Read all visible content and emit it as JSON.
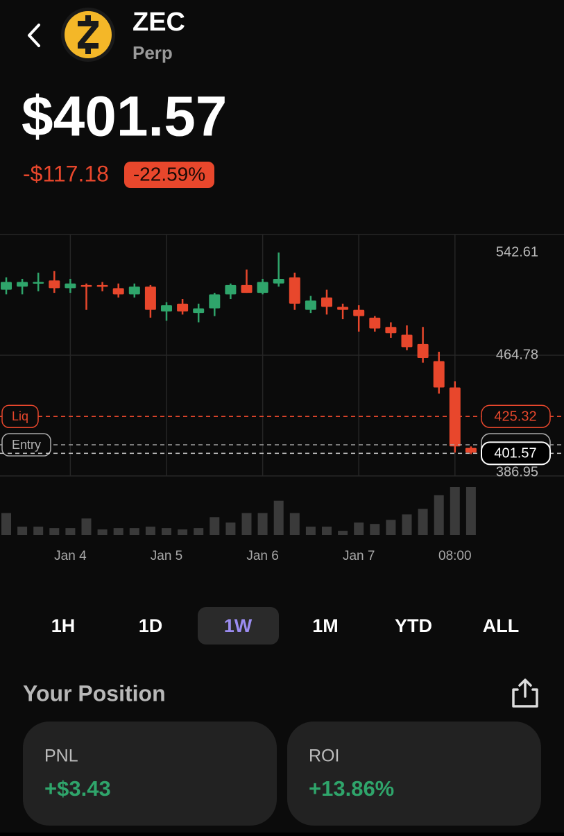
{
  "header": {
    "title": "ZEC",
    "subtitle": "Perp"
  },
  "price": "$401.57",
  "change": "-$117.18",
  "change_pct": "-22.59%",
  "chart_data": {
    "type": "candlestick",
    "categories": [
      null,
      null,
      null,
      null,
      "Jan 4",
      null,
      null,
      null,
      null,
      null,
      "Jan 5",
      null,
      null,
      null,
      null,
      null,
      "Jan 6",
      null,
      null,
      null,
      null,
      null,
      "Jan 7",
      null,
      null,
      null,
      null,
      null,
      "08:00",
      null
    ],
    "open": [
      507,
      509,
      511,
      513,
      508,
      510,
      510,
      508,
      504,
      509,
      493,
      498,
      492,
      495,
      504,
      510,
      505,
      511,
      515,
      494,
      502,
      496,
      494,
      489,
      483,
      478,
      472,
      461,
      444,
      405
    ],
    "high": [
      515,
      514,
      518,
      519,
      514,
      511,
      512,
      511,
      511,
      510,
      499,
      501,
      498,
      505,
      511,
      520,
      514,
      531,
      518,
      503,
      507,
      498,
      497,
      490,
      486,
      484,
      483,
      467,
      448,
      406
    ],
    "low": [
      504,
      504,
      506,
      505,
      505,
      494,
      506,
      502,
      502,
      489,
      487,
      491,
      486,
      490,
      501,
      505,
      504,
      509,
      494,
      492,
      491,
      488,
      480,
      480,
      476,
      468,
      460,
      440,
      402,
      401
    ],
    "close": [
      512,
      512,
      512,
      508,
      511,
      509,
      509,
      504,
      509,
      494,
      497,
      493,
      495,
      504,
      510,
      505,
      512,
      514,
      498,
      500,
      496,
      494,
      490,
      482,
      479,
      470,
      463,
      444,
      406,
      402
    ],
    "volume": [
      32,
      12,
      12,
      10,
      10,
      24,
      8,
      10,
      10,
      12,
      10,
      8,
      10,
      26,
      18,
      32,
      32,
      50,
      32,
      12,
      12,
      6,
      18,
      16,
      22,
      30,
      38,
      58,
      70,
      70
    ],
    "ylim": [
      386.95,
      542.61
    ],
    "yticks": [
      542.61,
      464.78,
      386.95
    ],
    "up_color": "#2fa56b",
    "down_color": "#e8472c",
    "levels": [
      {
        "label": "Liq",
        "value": 425.32,
        "color": "#e8472c"
      },
      {
        "label": "Entry",
        "value": 407,
        "color": "#b0b0b0"
      }
    ],
    "last_price": 401.57
  },
  "timeframes": [
    "1H",
    "1D",
    "1W",
    "1M",
    "YTD",
    "ALL"
  ],
  "selected_timeframe": "1W",
  "position": {
    "title": "Your Position",
    "cards": [
      {
        "label": "PNL",
        "value": "+$3.43"
      },
      {
        "label": "ROI",
        "value": "+13.86%"
      }
    ]
  }
}
